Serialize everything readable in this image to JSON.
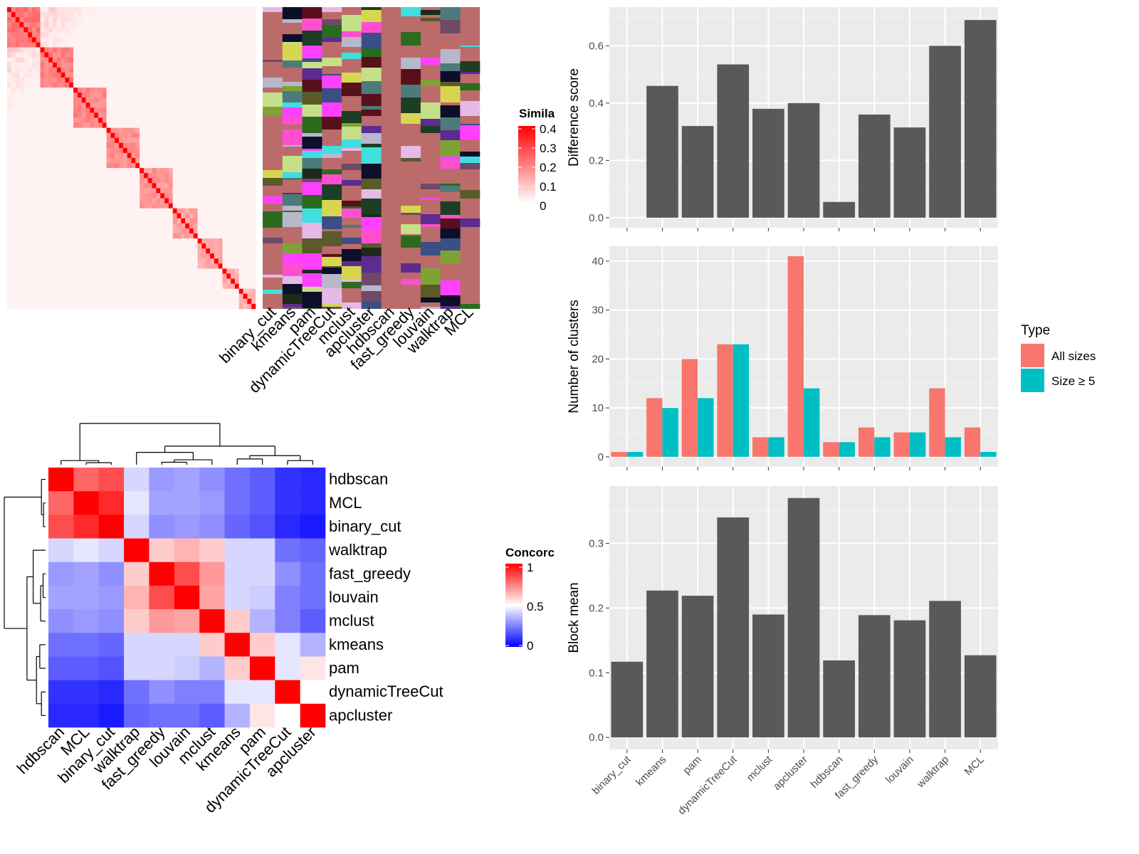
{
  "chart_data": [
    {
      "type": "heatmap",
      "name": "similarity-heatmap",
      "legend_title": "Simila",
      "legend_ticks": [
        "0.4",
        "0.3",
        "0.2",
        "0.1",
        "0"
      ],
      "legend_range": [
        0,
        0.4
      ],
      "colors": {
        "low": "#ffffff",
        "high": "#ff0000"
      }
    },
    {
      "type": "heatmap",
      "name": "cluster-membership-annotation",
      "columns": [
        "binary_cut",
        "kmeans",
        "pam",
        "dynamicTreeCut",
        "mclust",
        "apcluster",
        "hdbscan",
        "fast_greedy",
        "louvain",
        "walktrap",
        "MCL"
      ],
      "background_color": "#bc6b6b"
    },
    {
      "type": "heatmap",
      "name": "concordance-heatmap",
      "legend_title": "Concorc",
      "legend_ticks": [
        "1",
        "0.5",
        "0"
      ],
      "row_labels": [
        "hdbscan",
        "MCL",
        "binary_cut",
        "walktrap",
        "fast_greedy",
        "louvain",
        "mclust",
        "kmeans",
        "pam",
        "dynamicTreeCut",
        "apcluster"
      ],
      "col_labels": [
        "hdbscan",
        "MCL",
        "binary_cut",
        "walktrap",
        "fast_greedy",
        "louvain",
        "mclust",
        "kmeans",
        "pam",
        "dynamicTreeCut",
        "apcluster"
      ],
      "values": [
        [
          1.0,
          0.8,
          0.85,
          0.42,
          0.3,
          0.32,
          0.28,
          0.22,
          0.18,
          0.1,
          0.08
        ],
        [
          0.8,
          1.0,
          0.92,
          0.45,
          0.32,
          0.32,
          0.3,
          0.22,
          0.18,
          0.1,
          0.08
        ],
        [
          0.85,
          0.92,
          1.0,
          0.42,
          0.28,
          0.3,
          0.28,
          0.2,
          0.16,
          0.08,
          0.05
        ],
        [
          0.42,
          0.45,
          0.42,
          1.0,
          0.6,
          0.65,
          0.6,
          0.42,
          0.42,
          0.22,
          0.2
        ],
        [
          0.3,
          0.32,
          0.28,
          0.6,
          1.0,
          0.85,
          0.7,
          0.42,
          0.42,
          0.28,
          0.22
        ],
        [
          0.32,
          0.32,
          0.3,
          0.65,
          0.85,
          1.0,
          0.68,
          0.42,
          0.4,
          0.25,
          0.22
        ],
        [
          0.28,
          0.3,
          0.28,
          0.6,
          0.7,
          0.68,
          1.0,
          0.6,
          0.35,
          0.25,
          0.18
        ],
        [
          0.22,
          0.22,
          0.2,
          0.42,
          0.42,
          0.42,
          0.6,
          1.0,
          0.6,
          0.45,
          0.35
        ],
        [
          0.18,
          0.18,
          0.16,
          0.42,
          0.42,
          0.4,
          0.35,
          0.6,
          1.0,
          0.45,
          0.55
        ],
        [
          0.1,
          0.1,
          0.08,
          0.22,
          0.28,
          0.25,
          0.25,
          0.45,
          0.45,
          1.0,
          0.5
        ],
        [
          0.08,
          0.08,
          0.05,
          0.2,
          0.22,
          0.22,
          0.18,
          0.35,
          0.55,
          0.5,
          1.0
        ]
      ]
    },
    {
      "type": "bar",
      "name": "difference-score",
      "categories": [
        "binary_cut",
        "kmeans",
        "pam",
        "dynamicTreeCut",
        "mclust",
        "apcluster",
        "hdbscan",
        "fast_greedy",
        "louvain",
        "walktrap",
        "MCL"
      ],
      "values": [
        0.0,
        0.46,
        0.32,
        0.535,
        0.38,
        0.4,
        0.055,
        0.36,
        0.315,
        0.6,
        0.69
      ],
      "ylabel": "Difference score",
      "ylim": [
        -0.035,
        0.735
      ],
      "yticks": [
        "0.0",
        "0.2",
        "0.4",
        "0.6"
      ],
      "color": "#595959"
    },
    {
      "type": "bar",
      "name": "number-of-clusters",
      "categories": [
        "binary_cut",
        "kmeans",
        "pam",
        "dynamicTreeCut",
        "mclust",
        "apcluster",
        "hdbscan",
        "fast_greedy",
        "louvain",
        "walktrap",
        "MCL"
      ],
      "series": [
        {
          "name": "All sizes",
          "values": [
            1,
            12,
            20,
            23,
            4,
            41,
            3,
            6,
            5,
            14,
            6
          ],
          "color": "#f8766d"
        },
        {
          "name": "Size ≥ 5",
          "values": [
            1,
            10,
            12,
            23,
            4,
            14,
            3,
            4,
            5,
            4,
            1
          ],
          "color": "#00bfc4"
        }
      ],
      "ylabel": "Number of clusters",
      "ylim": [
        -2.05,
        43.05
      ],
      "yticks": [
        "0",
        "10",
        "20",
        "30",
        "40"
      ],
      "legend_title": "Type"
    },
    {
      "type": "bar",
      "name": "block-mean",
      "categories": [
        "binary_cut",
        "kmeans",
        "pam",
        "dynamicTreeCut",
        "mclust",
        "apcluster",
        "hdbscan",
        "fast_greedy",
        "louvain",
        "walktrap",
        "MCL"
      ],
      "values": [
        0.117,
        0.227,
        0.219,
        0.34,
        0.19,
        0.37,
        0.119,
        0.189,
        0.181,
        0.211,
        0.127
      ],
      "ylabel": "Block mean",
      "ylim": [
        -0.0185,
        0.3885
      ],
      "yticks": [
        "0.0",
        "0.1",
        "0.2",
        "0.3"
      ],
      "color": "#595959"
    }
  ]
}
